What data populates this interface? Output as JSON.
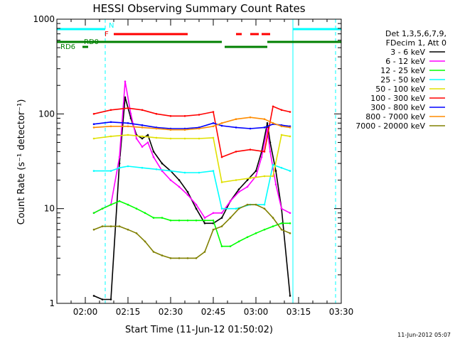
{
  "chart_data": {
    "type": "line",
    "title": "HESSI Observing Summary Count Rates",
    "xlabel": "Start Time (11-Jun-12 01:50:02)",
    "ylabel": "Count Rate (s⁻¹ detector⁻¹)",
    "y_scale": "log",
    "xlim": [
      "01:50",
      "03:30"
    ],
    "ylim": [
      1,
      1000
    ],
    "x_ticks": [
      "02:00",
      "02:15",
      "02:30",
      "02:45",
      "03:00",
      "03:15",
      "03:30"
    ],
    "y_ticks": [
      "1",
      "10",
      "100",
      "1000"
    ],
    "legend_header": [
      "Det 1,3,5,6,7,9,",
      "FDecim 1, Att 0"
    ],
    "timestamp": "11-Jun-2012 05:07",
    "series": [
      {
        "name": "3 - 6 keV",
        "color": "#000000",
        "x": [
          "02:03",
          "02:06",
          "02:09",
          "02:12",
          "02:14",
          "02:16",
          "02:18",
          "02:20",
          "02:22",
          "02:24",
          "02:27",
          "02:30",
          "02:33",
          "02:36",
          "02:39",
          "02:42",
          "02:45",
          "02:48",
          "02:51",
          "02:54",
          "02:57",
          "03:00",
          "03:02",
          "03:04",
          "03:05",
          "03:07",
          "03:09",
          "03:12"
        ],
        "y": [
          1.2,
          1.1,
          1.1,
          30,
          150,
          90,
          60,
          55,
          60,
          40,
          30,
          25,
          20,
          15,
          10,
          7,
          7,
          8,
          12,
          16,
          20,
          25,
          40,
          80,
          50,
          25,
          10,
          1.2
        ]
      },
      {
        "name": "6 - 12 keV",
        "color": "#ff00ff",
        "x": [
          "02:03",
          "02:06",
          "02:09",
          "02:12",
          "02:14",
          "02:16",
          "02:18",
          "02:20",
          "02:22",
          "02:24",
          "02:27",
          "02:30",
          "02:33",
          "02:36",
          "02:39",
          "02:42",
          "02:45",
          "02:48",
          "02:51",
          "02:54",
          "02:57",
          "03:00",
          "03:02",
          "03:04",
          "03:05",
          "03:07",
          "03:09",
          "03:12"
        ],
        "y": [
          9,
          10,
          11,
          35,
          220,
          100,
          55,
          45,
          50,
          35,
          25,
          20,
          17,
          14,
          11,
          8,
          9,
          9,
          12,
          15,
          17,
          22,
          35,
          70,
          40,
          18,
          10,
          9
        ]
      },
      {
        "name": "12 - 25 keV",
        "color": "#00ff00",
        "x": [
          "02:03",
          "02:06",
          "02:09",
          "02:12",
          "02:15",
          "02:18",
          "02:21",
          "02:24",
          "02:27",
          "02:30",
          "02:33",
          "02:36",
          "02:39",
          "02:42",
          "02:45",
          "02:48",
          "02:51",
          "02:54",
          "02:57",
          "03:00",
          "03:03",
          "03:06",
          "03:09",
          "03:12"
        ],
        "y": [
          9,
          10,
          11,
          12,
          11,
          10,
          9,
          8,
          8,
          7.5,
          7.5,
          7.5,
          7.5,
          7.5,
          7.5,
          4,
          4,
          4.5,
          5,
          5.5,
          6,
          6.5,
          7,
          7
        ]
      },
      {
        "name": "25 - 50 keV",
        "color": "#00ffff",
        "x": [
          "02:03",
          "02:09",
          "02:12",
          "02:15",
          "02:20",
          "02:25",
          "02:30",
          "02:35",
          "02:40",
          "02:45",
          "02:48",
          "02:53",
          "02:58",
          "03:03",
          "03:06",
          "03:09",
          "03:12"
        ],
        "y": [
          25,
          25,
          27,
          28,
          27,
          26,
          25,
          24,
          24,
          25,
          10,
          10,
          11,
          11,
          29,
          27,
          25
        ]
      },
      {
        "name": "50 - 100 keV",
        "color": "#e0e000",
        "x": [
          "02:03",
          "02:09",
          "02:15",
          "02:20",
          "02:25",
          "02:30",
          "02:35",
          "02:40",
          "02:45",
          "02:48",
          "02:53",
          "02:58",
          "03:03",
          "03:06",
          "03:09",
          "03:12"
        ],
        "y": [
          55,
          58,
          60,
          58,
          56,
          55,
          55,
          55,
          56,
          19,
          20,
          21,
          22,
          22,
          60,
          58
        ]
      },
      {
        "name": "100 - 300 keV",
        "color": "#ff0000",
        "x": [
          "02:03",
          "02:09",
          "02:15",
          "02:20",
          "02:25",
          "02:30",
          "02:35",
          "02:40",
          "02:45",
          "02:48",
          "02:53",
          "02:58",
          "03:03",
          "03:06",
          "03:09",
          "03:12"
        ],
        "y": [
          100,
          110,
          115,
          110,
          100,
          95,
          95,
          98,
          105,
          35,
          40,
          42,
          40,
          120,
          110,
          105
        ]
      },
      {
        "name": "300 - 800 keV",
        "color": "#0000ff",
        "x": [
          "02:03",
          "02:09",
          "02:15",
          "02:20",
          "02:25",
          "02:30",
          "02:35",
          "02:40",
          "02:45",
          "02:48",
          "02:53",
          "02:58",
          "03:03",
          "03:06",
          "03:09",
          "03:12"
        ],
        "y": [
          78,
          82,
          80,
          76,
          72,
          70,
          70,
          72,
          80,
          75,
          72,
          70,
          72,
          78,
          76,
          74
        ]
      },
      {
        "name": "800 - 7000 keV",
        "color": "#ff8c00",
        "x": [
          "02:03",
          "02:09",
          "02:15",
          "02:20",
          "02:25",
          "02:30",
          "02:35",
          "02:40",
          "02:45",
          "02:48",
          "02:53",
          "02:58",
          "03:03",
          "03:06",
          "03:09",
          "03:12"
        ],
        "y": [
          72,
          74,
          74,
          72,
          70,
          68,
          68,
          70,
          74,
          80,
          88,
          92,
          88,
          80,
          74,
          72
        ]
      },
      {
        "name": "7000 - 20000 keV",
        "color": "#808000",
        "x": [
          "02:03",
          "02:06",
          "02:09",
          "02:12",
          "02:15",
          "02:18",
          "02:21",
          "02:24",
          "02:27",
          "02:30",
          "02:33",
          "02:36",
          "02:39",
          "02:42",
          "02:45",
          "02:48",
          "02:51",
          "02:54",
          "02:57",
          "03:00",
          "03:03",
          "03:06",
          "03:09",
          "03:12"
        ],
        "y": [
          6,
          6.5,
          6.5,
          6.5,
          6,
          5.5,
          4.5,
          3.5,
          3.2,
          3,
          3,
          3,
          3,
          3.5,
          6,
          6.5,
          8,
          10,
          11,
          11,
          10,
          8,
          6,
          5.5
        ]
      }
    ],
    "flag_bars": [
      {
        "label": "N",
        "color": "#00ffff",
        "segments": [
          [
            "01:50",
            "02:07"
          ],
          [
            "03:13",
            "03:30"
          ]
        ]
      },
      {
        "label": "F",
        "color": "#ff0000",
        "segments": [
          [
            "02:10",
            "02:36"
          ],
          [
            "02:53",
            "02:55"
          ],
          [
            "02:58",
            "03:01"
          ],
          [
            "03:02",
            "03:05"
          ]
        ]
      },
      {
        "label": "RD0",
        "color": "#008000",
        "segments": [
          [
            "01:50",
            "02:48"
          ],
          [
            "03:04",
            "03:30"
          ]
        ]
      },
      {
        "label": "RD6",
        "color": "#008000",
        "segments": [
          [
            "01:59",
            "02:01"
          ],
          [
            "02:49",
            "03:04"
          ]
        ]
      }
    ],
    "vertical_lines": [
      {
        "x": "02:07",
        "style": "dashed",
        "color": "#00ffff"
      },
      {
        "x": "03:13",
        "style": "solid",
        "color": "#00ffff"
      },
      {
        "x": "03:28",
        "style": "dashed",
        "color": "#00ffff"
      }
    ]
  }
}
